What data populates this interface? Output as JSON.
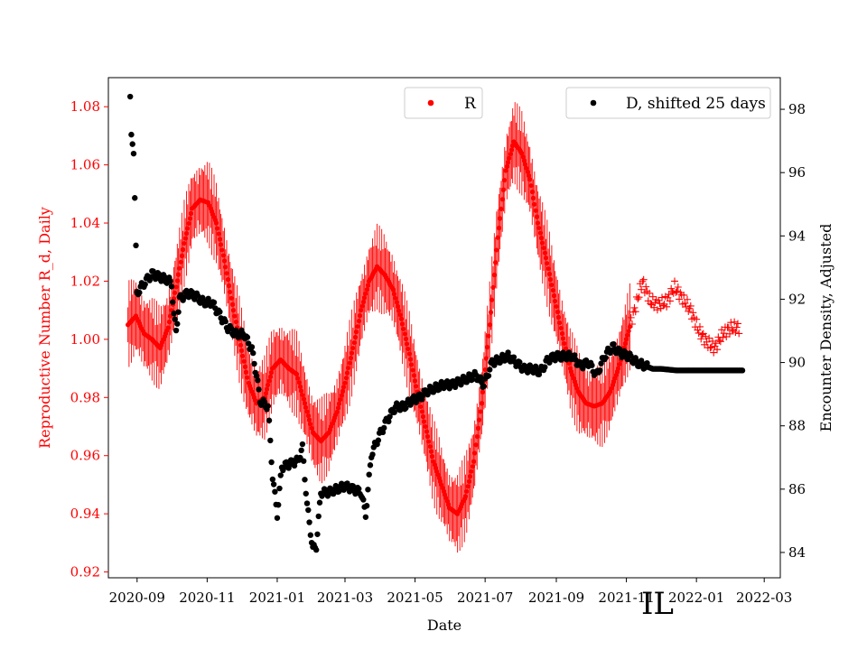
{
  "chart_data": {
    "type": "scatter",
    "xlabel": "Date",
    "ylabel_left": "Reproductive Number R_d, Daily",
    "ylabel_right": "Encounter Density, Adjusted",
    "annotation": "IL",
    "x_range": [
      "2020-08-07",
      "2022-03-15"
    ],
    "y_left_range": [
      0.918,
      1.09
    ],
    "y_right_range": [
      83.2,
      99.0
    ],
    "x_ticks": [
      "2020-09",
      "2020-11",
      "2021-01",
      "2021-03",
      "2021-05",
      "2021-07",
      "2021-09",
      "2021-11",
      "2022-01",
      "2022-03"
    ],
    "y_left_ticks": [
      "0.92",
      "0.94",
      "0.96",
      "0.98",
      "1.00",
      "1.02",
      "1.04",
      "1.06",
      "1.08"
    ],
    "y_right_ticks": [
      "84",
      "86",
      "88",
      "90",
      "92",
      "94",
      "96",
      "98"
    ],
    "colors": {
      "R": "#ff0000",
      "D": "#000000",
      "left_axis": "#ff0000",
      "right_axis": "#000000"
    },
    "legend": [
      {
        "label": "R",
        "position": "top-center"
      },
      {
        "label": "D, shifted 25 days",
        "position": "top-right"
      }
    ],
    "series": [
      {
        "name": "R",
        "axis": "left",
        "marker": "dot with error bars, later plus",
        "points": [
          [
            "2020-08-24",
            1.005
          ],
          [
            "2020-08-31",
            1.008
          ],
          [
            "2020-09-07",
            1.002
          ],
          [
            "2020-09-14",
            1.0
          ],
          [
            "2020-09-21",
            0.997
          ],
          [
            "2020-09-28",
            1.004
          ],
          [
            "2020-10-05",
            1.018
          ],
          [
            "2020-10-12",
            1.033
          ],
          [
            "2020-10-19",
            1.045
          ],
          [
            "2020-10-26",
            1.048
          ],
          [
            "2020-11-02",
            1.047
          ],
          [
            "2020-11-09",
            1.04
          ],
          [
            "2020-11-16",
            1.027
          ],
          [
            "2020-11-23",
            1.012
          ],
          [
            "2020-11-30",
            0.998
          ],
          [
            "2020-12-07",
            0.985
          ],
          [
            "2020-12-14",
            0.978
          ],
          [
            "2020-12-21",
            0.98
          ],
          [
            "2020-12-28",
            0.99
          ],
          [
            "2021-01-04",
            0.993
          ],
          [
            "2021-01-11",
            0.99
          ],
          [
            "2021-01-18",
            0.988
          ],
          [
            "2021-01-25",
            0.978
          ],
          [
            "2021-02-01",
            0.968
          ],
          [
            "2021-02-08",
            0.965
          ],
          [
            "2021-02-15",
            0.968
          ],
          [
            "2021-02-22",
            0.975
          ],
          [
            "2021-03-01",
            0.985
          ],
          [
            "2021-03-08",
            0.997
          ],
          [
            "2021-03-15",
            1.01
          ],
          [
            "2021-03-22",
            1.02
          ],
          [
            "2021-03-29",
            1.025
          ],
          [
            "2021-04-05",
            1.022
          ],
          [
            "2021-04-12",
            1.017
          ],
          [
            "2021-04-19",
            1.007
          ],
          [
            "2021-04-26",
            0.995
          ],
          [
            "2021-05-03",
            0.982
          ],
          [
            "2021-05-10",
            0.97
          ],
          [
            "2021-05-17",
            0.958
          ],
          [
            "2021-05-24",
            0.95
          ],
          [
            "2021-05-31",
            0.942
          ],
          [
            "2021-06-07",
            0.94
          ],
          [
            "2021-06-14",
            0.946
          ],
          [
            "2021-06-21",
            0.958
          ],
          [
            "2021-06-28",
            0.978
          ],
          [
            "2021-07-05",
            1.005
          ],
          [
            "2021-07-12",
            1.035
          ],
          [
            "2021-07-19",
            1.058
          ],
          [
            "2021-07-26",
            1.068
          ],
          [
            "2021-08-02",
            1.064
          ],
          [
            "2021-08-09",
            1.055
          ],
          [
            "2021-08-16",
            1.04
          ],
          [
            "2021-08-23",
            1.028
          ],
          [
            "2021-08-30",
            1.015
          ],
          [
            "2021-09-06",
            1.002
          ],
          [
            "2021-09-13",
            0.99
          ],
          [
            "2021-09-20",
            0.982
          ],
          [
            "2021-09-27",
            0.978
          ],
          [
            "2021-10-04",
            0.977
          ],
          [
            "2021-10-11",
            0.978
          ],
          [
            "2021-10-18",
            0.982
          ],
          [
            "2021-10-25",
            0.99
          ],
          [
            "2021-11-01",
            1.0
          ],
          [
            "2021-11-08",
            1.01
          ],
          [
            "2021-11-15",
            1.02
          ],
          [
            "2021-11-22",
            1.013
          ],
          [
            "2021-11-29",
            1.012
          ],
          [
            "2021-12-06",
            1.013
          ],
          [
            "2021-12-13",
            1.018
          ],
          [
            "2021-12-20",
            1.014
          ],
          [
            "2021-12-27",
            1.01
          ],
          [
            "2022-01-03",
            1.003
          ],
          [
            "2022-01-10",
            0.999
          ],
          [
            "2022-01-17",
            0.997
          ],
          [
            "2022-01-24",
            1.002
          ],
          [
            "2022-01-31",
            1.004
          ],
          [
            "2022-02-07",
            1.004
          ]
        ]
      },
      {
        "name": "D, shifted 25 days",
        "axis": "right",
        "marker": "dot",
        "points": [
          [
            "2020-08-26",
            98.4
          ],
          [
            "2020-08-27",
            97.2
          ],
          [
            "2020-08-28",
            96.9
          ],
          [
            "2020-08-29",
            96.6
          ],
          [
            "2020-08-30",
            95.2
          ],
          [
            "2020-08-31",
            93.7
          ],
          [
            "2020-09-01",
            92.2
          ],
          [
            "2020-09-07",
            92.5
          ],
          [
            "2020-09-14",
            92.8
          ],
          [
            "2020-09-21",
            92.7
          ],
          [
            "2020-09-28",
            92.6
          ],
          [
            "2020-10-01",
            92.5
          ],
          [
            "2020-10-03",
            91.5
          ],
          [
            "2020-10-05",
            91.0
          ],
          [
            "2020-10-08",
            92.0
          ],
          [
            "2020-10-15",
            92.2
          ],
          [
            "2020-10-22",
            92.1
          ],
          [
            "2020-10-29",
            91.9
          ],
          [
            "2020-11-05",
            91.9
          ],
          [
            "2020-11-12",
            91.5
          ],
          [
            "2020-11-19",
            91.1
          ],
          [
            "2020-11-26",
            90.9
          ],
          [
            "2020-12-03",
            90.9
          ],
          [
            "2020-12-10",
            90.4
          ],
          [
            "2020-12-14",
            89.6
          ],
          [
            "2020-12-17",
            88.8
          ],
          [
            "2020-12-24",
            88.6
          ],
          [
            "2020-12-28",
            86.4
          ],
          [
            "2021-01-01",
            85.2
          ],
          [
            "2021-01-05",
            86.7
          ],
          [
            "2021-01-12",
            86.8
          ],
          [
            "2021-01-19",
            86.9
          ],
          [
            "2021-01-23",
            87.3
          ],
          [
            "2021-01-27",
            85.5
          ],
          [
            "2021-02-01",
            84.1
          ],
          [
            "2021-02-04",
            84.2
          ],
          [
            "2021-02-08",
            85.9
          ],
          [
            "2021-02-15",
            85.9
          ],
          [
            "2021-02-22",
            86.0
          ],
          [
            "2021-03-01",
            86.1
          ],
          [
            "2021-03-08",
            86.0
          ],
          [
            "2021-03-15",
            85.9
          ],
          [
            "2021-03-19",
            85.2
          ],
          [
            "2021-03-24",
            87.1
          ],
          [
            "2021-03-31",
            87.7
          ],
          [
            "2021-04-07",
            88.2
          ],
          [
            "2021-04-14",
            88.6
          ],
          [
            "2021-04-21",
            88.6
          ],
          [
            "2021-04-28",
            88.8
          ],
          [
            "2021-05-05",
            88.9
          ],
          [
            "2021-05-12",
            89.1
          ],
          [
            "2021-05-19",
            89.2
          ],
          [
            "2021-05-26",
            89.3
          ],
          [
            "2021-06-02",
            89.3
          ],
          [
            "2021-06-09",
            89.4
          ],
          [
            "2021-06-16",
            89.5
          ],
          [
            "2021-06-23",
            89.6
          ],
          [
            "2021-06-30",
            89.3
          ],
          [
            "2021-07-07",
            90.0
          ],
          [
            "2021-07-14",
            90.1
          ],
          [
            "2021-07-21",
            90.2
          ],
          [
            "2021-07-28",
            90.0
          ],
          [
            "2021-08-04",
            89.8
          ],
          [
            "2021-08-11",
            89.8
          ],
          [
            "2021-08-18",
            89.7
          ],
          [
            "2021-08-25",
            90.1
          ],
          [
            "2021-09-01",
            90.2
          ],
          [
            "2021-09-08",
            90.2
          ],
          [
            "2021-09-15",
            90.2
          ],
          [
            "2021-09-22",
            89.9
          ],
          [
            "2021-09-29",
            90.0
          ],
          [
            "2021-10-06",
            89.6
          ],
          [
            "2021-10-13",
            90.2
          ],
          [
            "2021-10-20",
            90.5
          ],
          [
            "2021-10-27",
            90.3
          ],
          [
            "2021-11-03",
            90.2
          ],
          [
            "2021-11-10",
            90.0
          ],
          [
            "2021-11-17",
            89.9
          ],
          [
            "2021-11-24",
            89.8
          ],
          [
            "2021-12-01",
            89.8
          ],
          [
            "2021-12-15",
            89.75
          ],
          [
            "2022-01-01",
            89.75
          ],
          [
            "2022-01-20",
            89.75
          ],
          [
            "2022-02-10",
            89.75
          ]
        ]
      }
    ]
  }
}
